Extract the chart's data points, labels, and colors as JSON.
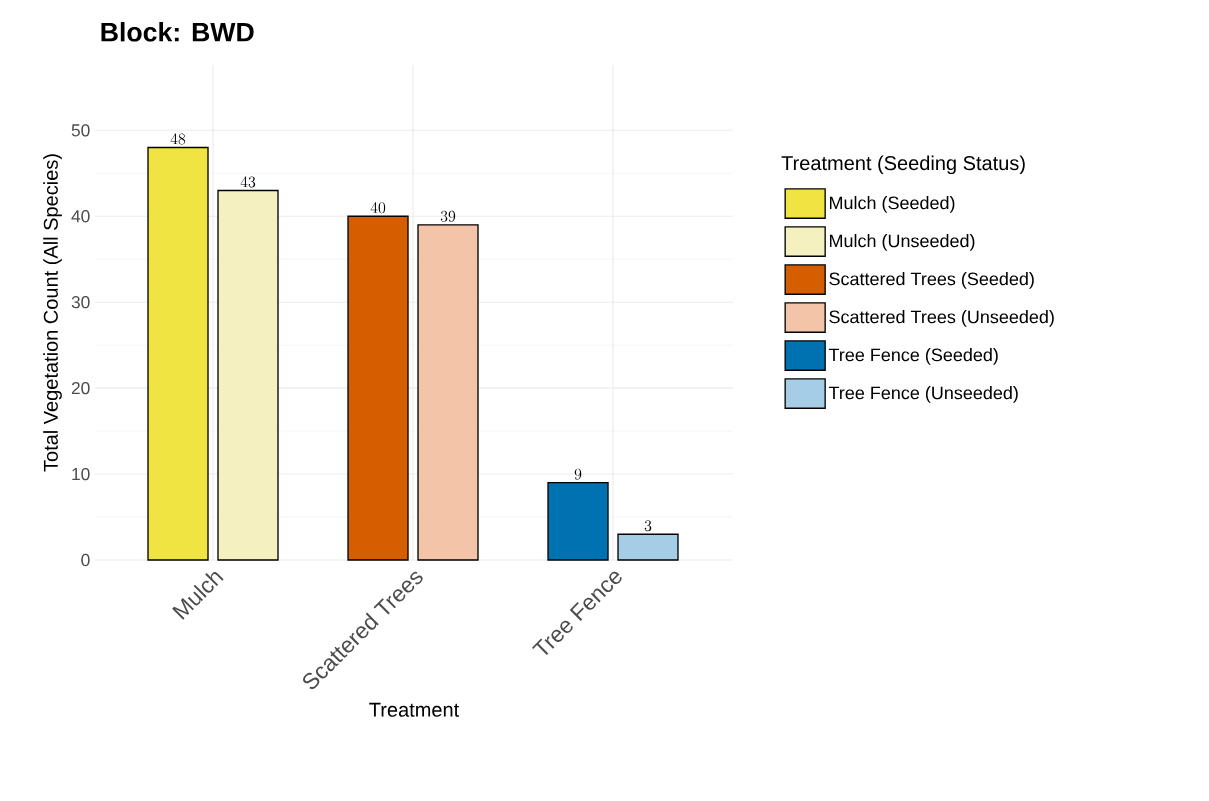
{
  "chart_data": {
    "type": "bar",
    "title": "Block: BWD",
    "xlabel": "Treatment",
    "ylabel": "Total Vegetation Count (All Species)",
    "legend_title": "Treatment (Seeding Status)",
    "categories": [
      "Mulch",
      "Scattered Trees",
      "Tree Fence"
    ],
    "series": [
      {
        "name": "Mulch (Seeded)",
        "color": "#f0e442",
        "values": [
          48,
          null,
          null
        ]
      },
      {
        "name": "Mulch (Unseeded)",
        "color": "#f5f0c0",
        "values": [
          43,
          null,
          null
        ]
      },
      {
        "name": "Scattered Trees (Seeded)",
        "color": "#d55e00",
        "values": [
          null,
          40,
          null
        ]
      },
      {
        "name": "Scattered Trees (Unseeded)",
        "color": "#f3c4a8",
        "values": [
          null,
          39,
          null
        ]
      },
      {
        "name": "Tree Fence (Seeded)",
        "color": "#0072b2",
        "values": [
          null,
          null,
          9
        ]
      },
      {
        "name": "Tree Fence (Unseeded)",
        "color": "#a6cde6",
        "values": [
          null,
          null,
          3
        ]
      }
    ],
    "ylim": [
      0,
      57.6
    ],
    "yticks": [
      0,
      10,
      20,
      30,
      40,
      50
    ],
    "grid": true,
    "legend": "right",
    "data_labels": true
  }
}
